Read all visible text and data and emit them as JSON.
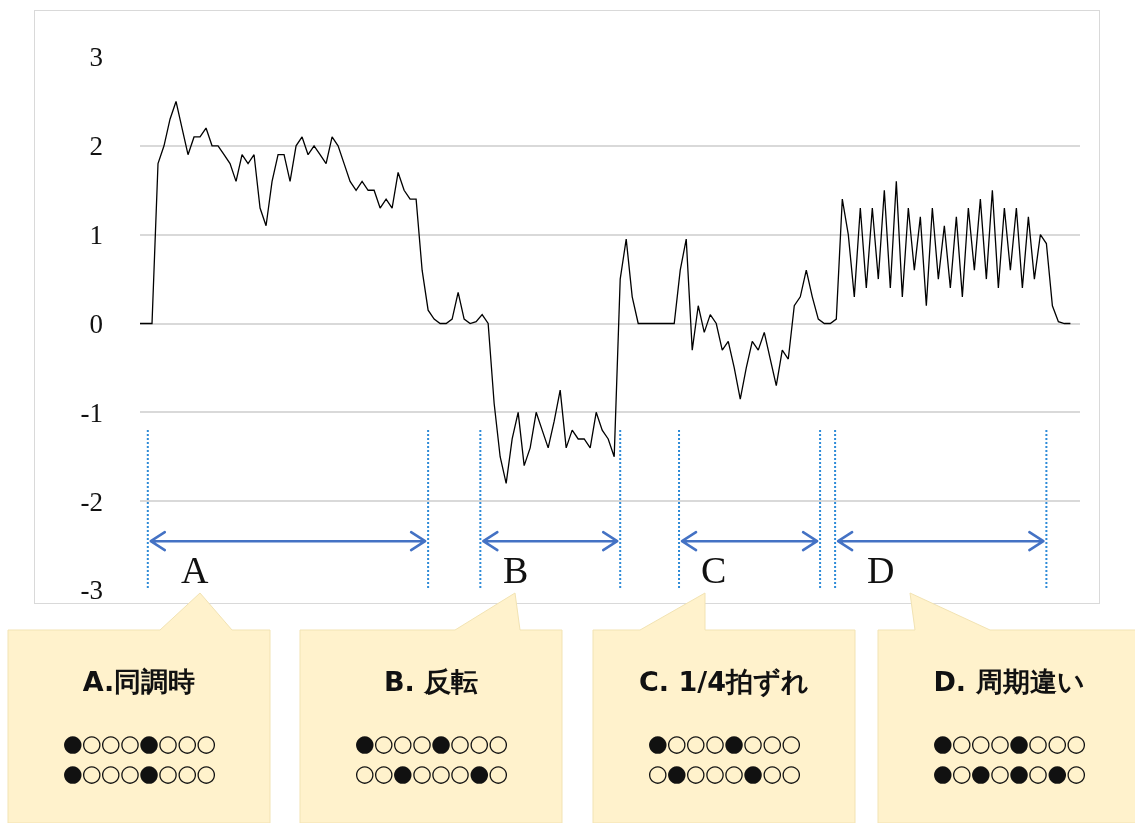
{
  "chart_data": {
    "type": "line",
    "categories": [
      null,
      null,
      null,
      null,
      null,
      null,
      null,
      null,
      null,
      null,
      null,
      null,
      null,
      null,
      null,
      null,
      null,
      null,
      null,
      null,
      null,
      null,
      null,
      null,
      null,
      null,
      null,
      null,
      null,
      null,
      null,
      null,
      null,
      null,
      null,
      null,
      null,
      null,
      null,
      null,
      null,
      null,
      null,
      null,
      null,
      null,
      null,
      null,
      null,
      null,
      null,
      null,
      null,
      null,
      null,
      null,
      null,
      null,
      null,
      null,
      null,
      null,
      null,
      null,
      null,
      null,
      null,
      null,
      null,
      null,
      null,
      null,
      null,
      null,
      null,
      null,
      null,
      null,
      null,
      null,
      null,
      null,
      null,
      null,
      null,
      null,
      null,
      null,
      null,
      null,
      null,
      null,
      null,
      null,
      null,
      null,
      null,
      null,
      null,
      null,
      null,
      null,
      null,
      null,
      null,
      null,
      null,
      null,
      null,
      null,
      null,
      null,
      null,
      null,
      null,
      null,
      null,
      null,
      null,
      null,
      null,
      null,
      null,
      null,
      null,
      null,
      null,
      null,
      null,
      null,
      null,
      null,
      null,
      null,
      null,
      null,
      null,
      null,
      null,
      null,
      null,
      null,
      null,
      null,
      null,
      null,
      null,
      null,
      null,
      null,
      null,
      null,
      null,
      null,
      null,
      null
    ],
    "series": [
      {
        "color": "#000000",
        "values": [
          0,
          0,
          0,
          1.8,
          2.0,
          2.3,
          2.5,
          2.2,
          1.9,
          2.1,
          2.1,
          2.2,
          2.0,
          2.0,
          1.9,
          1.8,
          1.6,
          1.9,
          1.8,
          1.9,
          1.3,
          1.1,
          1.6,
          1.9,
          1.9,
          1.6,
          2.0,
          2.1,
          1.9,
          2.0,
          1.9,
          1.8,
          2.1,
          2.0,
          1.8,
          1.6,
          1.5,
          1.6,
          1.5,
          1.5,
          1.3,
          1.4,
          1.3,
          1.7,
          1.5,
          1.4,
          1.4,
          0.6,
          0.15,
          0.05,
          0,
          0,
          0.05,
          0.35,
          0.05,
          0,
          0.02,
          0.1,
          0,
          -0.9,
          -1.5,
          -1.8,
          -1.3,
          -1.0,
          -1.6,
          -1.4,
          -1.0,
          -1.2,
          -1.4,
          -1.1,
          -0.75,
          -1.4,
          -1.2,
          -1.3,
          -1.3,
          -1.4,
          -1.0,
          -1.2,
          -1.3,
          -1.5,
          0.5,
          0.95,
          0.3,
          0,
          0,
          0,
          0,
          0,
          0,
          0,
          0.6,
          0.95,
          -0.3,
          0.2,
          -0.1,
          0.1,
          0,
          -0.3,
          -0.2,
          -0.5,
          -0.85,
          -0.5,
          -0.2,
          -0.3,
          -0.1,
          -0.4,
          -0.7,
          -0.3,
          -0.4,
          0.2,
          0.3,
          0.6,
          0.3,
          0.05,
          0,
          0,
          0.05,
          1.4,
          1.0,
          0.3,
          1.3,
          0.4,
          1.3,
          0.5,
          1.5,
          0.4,
          1.6,
          0.3,
          1.3,
          0.6,
          1.2,
          0.2,
          1.3,
          0.5,
          1.1,
          0.4,
          1.2,
          0.3,
          1.3,
          0.6,
          1.4,
          0.5,
          1.5,
          0.4,
          1.3,
          0.6,
          1.3,
          0.4,
          1.2,
          0.5,
          1.0,
          0.9,
          0.2,
          0.02,
          0,
          0
        ]
      }
    ],
    "ylim": [
      -3,
      3
    ],
    "yticks": [
      -3,
      -2,
      -1,
      0,
      1,
      2,
      3
    ],
    "grid": "y",
    "tick_labels": "y",
    "marker": "none",
    "line_style": "solid",
    "annotations": [
      "A",
      "B",
      "C",
      "D",
      "A.同調時",
      "●○○○●○○○",
      "●○○○●○○○",
      "B. 反転",
      "●○○○●○○○",
      "○○●○○○●○",
      "C. 1/4拍ずれ",
      "●○○○●○○○",
      "○●○○○●○○",
      "D. 周期違い",
      "●○○○●○○○",
      "●○●○●○●○"
    ]
  }
}
